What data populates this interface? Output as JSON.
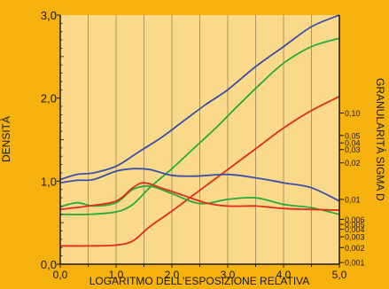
{
  "chart_data": {
    "type": "line",
    "xlabel": "LOGARITMO DELL'ESPOSIZIONE RELATIVA",
    "ylabel": "DENSITÀ",
    "y2label": "GRANULARITÀ SIGMA D",
    "xlim": [
      0,
      5
    ],
    "ylim": [
      0,
      3
    ],
    "x_ticks": [
      "0,0",
      "1,0",
      "2,0",
      "3,0",
      "4,0",
      "5,0"
    ],
    "y_ticks": [
      "0,0",
      "1,0",
      "2,0",
      "3,0"
    ],
    "y2_ticks": [
      "0,001",
      "0,002",
      "0,003",
      "0,004",
      "0,005",
      "0,006",
      "0,01",
      "0,02",
      "0,03",
      "0,04",
      "0,05",
      "0,10"
    ],
    "y2_tick_positions_density": [
      0.02,
      0.2,
      0.33,
      0.42,
      0.48,
      0.54,
      0.78,
      1.22,
      1.38,
      1.46,
      1.55,
      1.82
    ],
    "grid": true,
    "plot_background": "#fbd98a",
    "series": [
      {
        "color": "#3a4fa8",
        "kind": "density",
        "x": [
          0.0,
          0.3,
          0.6,
          1.0,
          1.4,
          1.8,
          2.2,
          2.6,
          3.0,
          3.5,
          4.0,
          4.5,
          5.0
        ],
        "y": [
          1.02,
          1.08,
          1.1,
          1.18,
          1.35,
          1.52,
          1.72,
          1.92,
          2.1,
          2.38,
          2.62,
          2.86,
          3.0
        ]
      },
      {
        "color": "#2aa83a",
        "kind": "density",
        "x": [
          0.0,
          0.5,
          1.0,
          1.3,
          1.6,
          2.0,
          2.4,
          2.8,
          3.2,
          3.6,
          4.0,
          4.5,
          5.0
        ],
        "y": [
          0.6,
          0.6,
          0.63,
          0.72,
          0.92,
          1.15,
          1.4,
          1.65,
          1.92,
          2.18,
          2.42,
          2.62,
          2.72
        ]
      },
      {
        "color": "#e02a1c",
        "kind": "density",
        "x": [
          0.0,
          0.5,
          1.0,
          1.3,
          1.6,
          2.0,
          2.4,
          2.8,
          3.2,
          3.6,
          4.0,
          4.5,
          5.0
        ],
        "y": [
          0.22,
          0.22,
          0.23,
          0.28,
          0.45,
          0.64,
          0.84,
          1.04,
          1.24,
          1.44,
          1.64,
          1.85,
          2.02
        ]
      },
      {
        "color": "#3a4fa8",
        "kind": "granularity",
        "x": [
          0.0,
          0.3,
          0.6,
          1.0,
          1.3,
          1.6,
          2.0,
          2.4,
          3.0,
          3.5,
          4.0,
          4.5,
          5.0
        ],
        "y": [
          0.98,
          1.01,
          1.02,
          1.12,
          1.15,
          1.14,
          1.07,
          1.06,
          1.08,
          1.04,
          0.98,
          0.92,
          0.76
        ]
      },
      {
        "color": "#2aa83a",
        "kind": "granularity",
        "x": [
          0.0,
          0.3,
          0.6,
          1.0,
          1.3,
          1.6,
          2.0,
          2.5,
          3.0,
          3.5,
          4.0,
          4.5,
          5.0
        ],
        "y": [
          0.69,
          0.74,
          0.7,
          0.74,
          0.9,
          0.94,
          0.85,
          0.73,
          0.78,
          0.8,
          0.72,
          0.68,
          0.6
        ]
      },
      {
        "color": "#e02a1c",
        "kind": "granularity",
        "x": [
          0.0,
          0.5,
          1.0,
          1.3,
          1.5,
          1.8,
          2.2,
          2.6,
          3.0,
          3.5,
          4.0,
          4.5,
          5.0
        ],
        "y": [
          0.66,
          0.7,
          0.76,
          0.92,
          0.98,
          0.92,
          0.83,
          0.74,
          0.7,
          0.7,
          0.67,
          0.66,
          0.65
        ]
      }
    ]
  }
}
